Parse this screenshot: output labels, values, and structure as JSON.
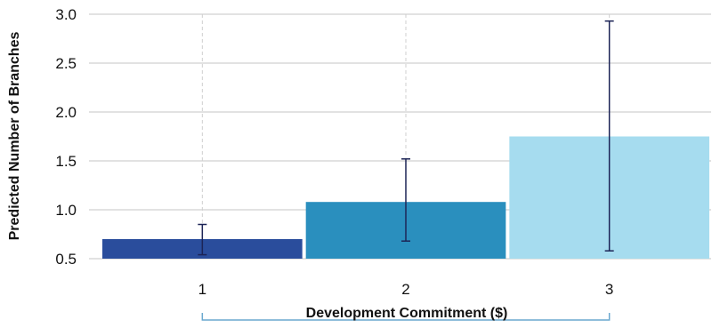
{
  "chart_data": {
    "type": "bar",
    "title": "",
    "xlabel": "Development Commitment ($)",
    "ylabel": "Predicted Number of Branches",
    "categories": [
      "1",
      "2",
      "3"
    ],
    "values": [
      0.7,
      1.08,
      1.75
    ],
    "error_low": [
      0.54,
      0.68,
      0.58
    ],
    "error_high": [
      0.85,
      1.52,
      2.93
    ],
    "ylim": [
      0.5,
      3.0
    ],
    "yticks": [
      "0.5",
      "1.0",
      "1.5",
      "2.0",
      "2.5",
      "3.0"
    ],
    "grid": true,
    "legend": "none",
    "colors": [
      "#2a4d9c",
      "#2a8fbe",
      "#a6dcef"
    ],
    "error_color": "#1c2456",
    "grid_color": "#e2e2e2",
    "bracket_color": "#6aa8cf"
  }
}
